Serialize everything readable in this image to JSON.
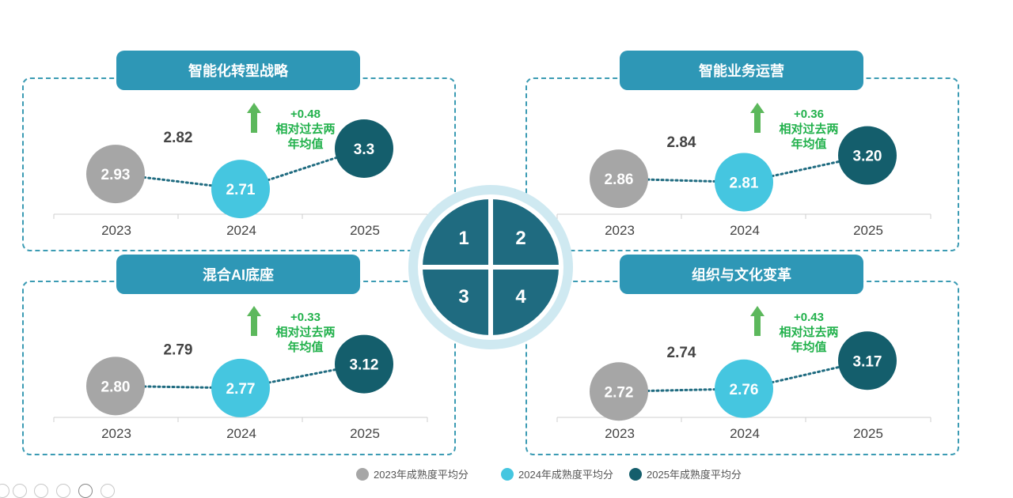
{
  "legend": {
    "items": [
      {
        "label": "2023年成熟度平均分",
        "color": "#a6a6a6"
      },
      {
        "label": "2024年成熟度平均分",
        "color": "#45c6e0"
      },
      {
        "label": "2025年成熟度平均分",
        "color": "#145e6c"
      }
    ]
  },
  "center": {
    "numbers": [
      "1",
      "2",
      "3",
      "4"
    ]
  },
  "chart_data": [
    {
      "type": "scatter",
      "title": "智能化转型战略",
      "x": [
        "2023",
        "2024",
        "2025"
      ],
      "values": [
        2.93,
        2.71,
        3.3
      ],
      "value_labels": [
        "2.93",
        "2.71",
        "3.3"
      ],
      "past_two_year_avg": "2.82",
      "delta": "+0.48",
      "delta_note": [
        "相对过去两",
        "年均值"
      ]
    },
    {
      "type": "scatter",
      "title": "智能业务运营",
      "x": [
        "2023",
        "2024",
        "2025"
      ],
      "values": [
        2.86,
        2.81,
        3.2
      ],
      "value_labels": [
        "2.86",
        "2.81",
        "3.20"
      ],
      "past_two_year_avg": "2.84",
      "delta": "+0.36",
      "delta_note": [
        "相对过去两",
        "年均值"
      ]
    },
    {
      "type": "scatter",
      "title": "混合AI底座",
      "x": [
        "2023",
        "2024",
        "2025"
      ],
      "values": [
        2.8,
        2.77,
        3.12
      ],
      "value_labels": [
        "2.80",
        "2.77",
        "3.12"
      ],
      "past_two_year_avg": "2.79",
      "delta": "+0.33",
      "delta_note": [
        "相对过去两",
        "年均值"
      ]
    },
    {
      "type": "scatter",
      "title": "组织与文化变革",
      "x": [
        "2023",
        "2024",
        "2025"
      ],
      "values": [
        2.72,
        2.76,
        3.17
      ],
      "value_labels": [
        "2.72",
        "2.76",
        "3.17"
      ],
      "past_two_year_avg": "2.74",
      "delta": "+0.43",
      "delta_note": [
        "相对过去两",
        "年均值"
      ]
    }
  ]
}
